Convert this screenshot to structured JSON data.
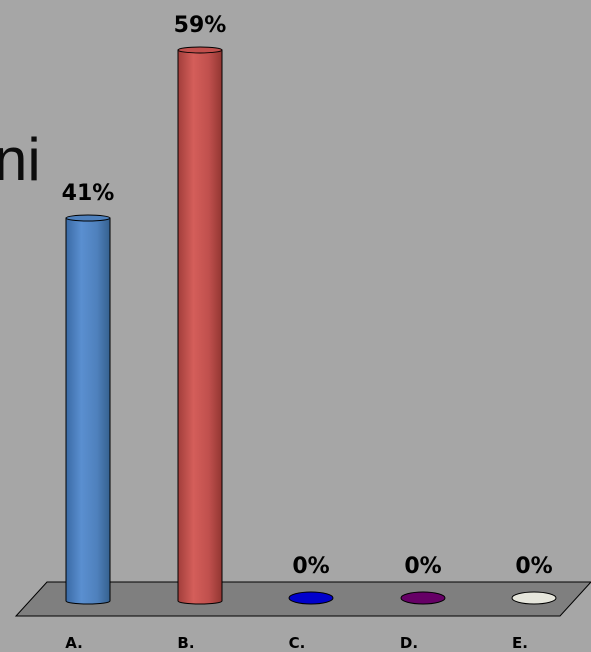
{
  "stray_text": "ni",
  "chart_data": {
    "type": "bar",
    "style": "3d-cylinder",
    "title": "",
    "xlabel": "",
    "ylabel": "",
    "ylim": [
      0,
      100
    ],
    "grid": false,
    "legend": "none",
    "categories": [
      "A.",
      "B.",
      "C.",
      "D.",
      "E."
    ],
    "values": [
      41,
      59,
      0,
      0,
      0
    ],
    "value_labels": [
      "41%",
      "59%",
      "0%",
      "0%",
      "0%"
    ],
    "colors": [
      "#4f81bd",
      "#c0504d",
      "#0000cc",
      "#660066",
      "#e6e6dc"
    ]
  }
}
